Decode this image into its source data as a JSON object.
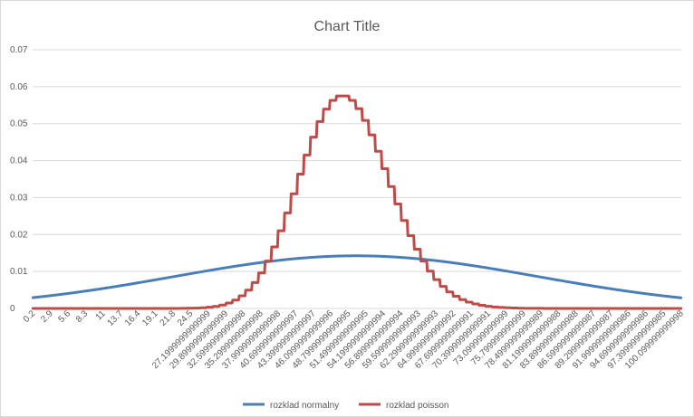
{
  "chart_data": {
    "type": "line",
    "title": "Chart Title",
    "x_start": 0.2,
    "x_step": 0.1,
    "x_count": 1000,
    "x_tick_interval": 27,
    "x_tick_labels": [
      "0.2",
      "2.9",
      "5.6",
      "8.3",
      "11",
      "13.7",
      "16.4",
      "19.1",
      "21.8",
      "24.5",
      "27.1999999999999",
      "29.8999999999999",
      "32.5999999999998",
      "35.2999999999998",
      "37.9999999999998",
      "40.6999999999997",
      "43.3999999999997",
      "46.0999999999996",
      "48.7999999999995",
      "51.4999999999995",
      "54.1999999999994",
      "56.8999999999994",
      "59.5999999999993",
      "62.2999999999993",
      "64.9999999999992",
      "67.6999999999991",
      "70.3999999999991",
      "73.099999999999",
      "75.799999999999",
      "78.4999999999989",
      "81.1999999999988",
      "83.8999999999988",
      "86.5999999999987",
      "89.2999999999987",
      "91.9999999999986",
      "94.6999999999986",
      "97.3999999999985",
      "100.099999999998"
    ],
    "y_ticks": [
      "0",
      "0.01",
      "0.02",
      "0.03",
      "0.04",
      "0.05",
      "0.06",
      "0.07"
    ],
    "ylim": [
      0,
      0.07
    ],
    "grid": true,
    "legend_position": "bottom",
    "series": [
      {
        "name": "rozklad normalny",
        "color": "#4a7ebb",
        "distribution": "normal",
        "mean": 50,
        "sd": 28
      },
      {
        "name": "rozklad poisson",
        "color": "#be4b48",
        "distribution": "poisson",
        "lambda": 48
      }
    ]
  }
}
